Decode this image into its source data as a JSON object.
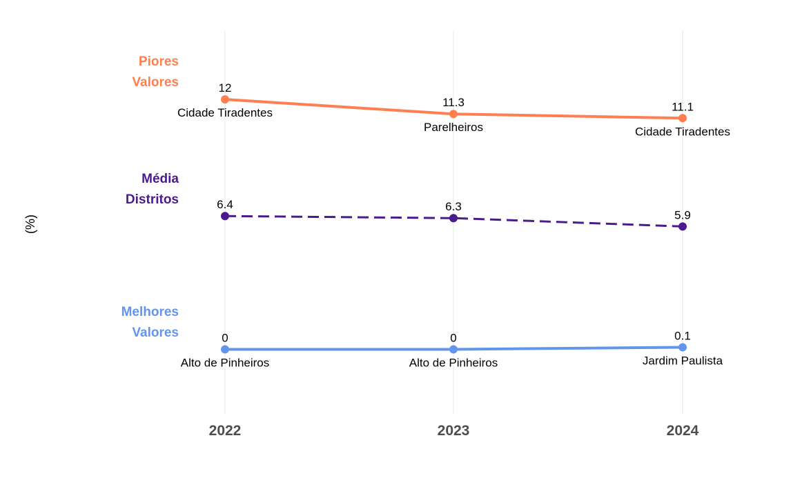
{
  "chart_data": {
    "type": "line",
    "ylabel": "(%)",
    "x": [
      "2022",
      "2023",
      "2024"
    ],
    "grid": "vertical",
    "series": [
      {
        "key": "worst",
        "label_lines": [
          "Piores",
          "Valores"
        ],
        "color": "#FF7F50",
        "line_style": "solid",
        "values": [
          12,
          11.3,
          11.1
        ],
        "value_labels": [
          "12",
          "11.3",
          "11.1"
        ],
        "districts": [
          "Cidade Tiradentes",
          "Parelheiros",
          "Cidade Tiradentes"
        ]
      },
      {
        "key": "mean",
        "label_lines": [
          "Média",
          "Distritos"
        ],
        "color": "#4B1A8C",
        "line_style": "dashed",
        "values": [
          6.4,
          6.3,
          5.9
        ],
        "value_labels": [
          "6.4",
          "6.3",
          "5.9"
        ],
        "districts": []
      },
      {
        "key": "best",
        "label_lines": [
          "Melhores",
          "Valores"
        ],
        "color": "#6495ED",
        "line_style": "solid",
        "values": [
          0,
          0,
          0.1
        ],
        "value_labels": [
          "0",
          "0",
          "0.1"
        ],
        "districts": [
          "Alto de Pinheiros",
          "Alto de Pinheiros",
          "Jardim Paulista"
        ]
      }
    ]
  }
}
